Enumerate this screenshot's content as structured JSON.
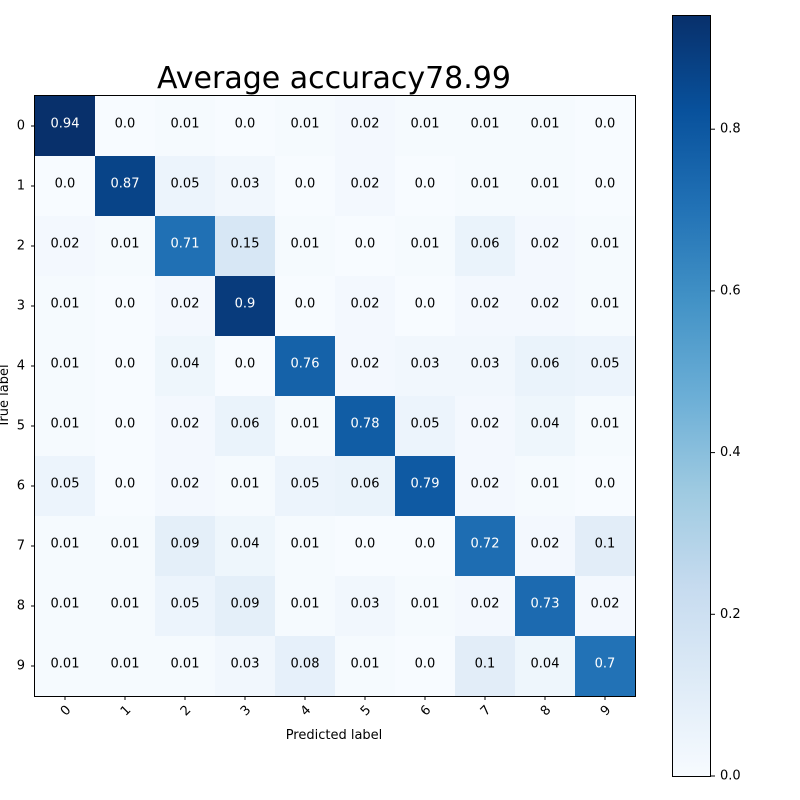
{
  "chart_data": {
    "type": "heatmap",
    "title": "Average accuracy78.99",
    "xlabel": "Predicted label",
    "ylabel": "True label",
    "x_categories": [
      "0",
      "1",
      "2",
      "3",
      "4",
      "5",
      "6",
      "7",
      "8",
      "9"
    ],
    "y_categories": [
      "0",
      "1",
      "2",
      "3",
      "4",
      "5",
      "6",
      "7",
      "8",
      "9"
    ],
    "values": [
      [
        "0.94",
        "0.0",
        "0.01",
        "0.0",
        "0.01",
        "0.02",
        "0.01",
        "0.01",
        "0.01",
        "0.0"
      ],
      [
        "0.0",
        "0.87",
        "0.05",
        "0.03",
        "0.0",
        "0.02",
        "0.0",
        "0.01",
        "0.01",
        "0.0"
      ],
      [
        "0.02",
        "0.01",
        "0.71",
        "0.15",
        "0.01",
        "0.0",
        "0.01",
        "0.06",
        "0.02",
        "0.01"
      ],
      [
        "0.01",
        "0.0",
        "0.02",
        "0.9",
        "0.0",
        "0.02",
        "0.0",
        "0.02",
        "0.02",
        "0.01"
      ],
      [
        "0.01",
        "0.0",
        "0.04",
        "0.0",
        "0.76",
        "0.02",
        "0.03",
        "0.03",
        "0.06",
        "0.05"
      ],
      [
        "0.01",
        "0.0",
        "0.02",
        "0.06",
        "0.01",
        "0.78",
        "0.05",
        "0.02",
        "0.04",
        "0.01"
      ],
      [
        "0.05",
        "0.0",
        "0.02",
        "0.01",
        "0.05",
        "0.06",
        "0.79",
        "0.02",
        "0.01",
        "0.0"
      ],
      [
        "0.01",
        "0.01",
        "0.09",
        "0.04",
        "0.01",
        "0.0",
        "0.0",
        "0.72",
        "0.02",
        "0.1"
      ],
      [
        "0.01",
        "0.01",
        "0.05",
        "0.09",
        "0.01",
        "0.03",
        "0.01",
        "0.02",
        "0.73",
        "0.02"
      ],
      [
        "0.01",
        "0.01",
        "0.01",
        "0.03",
        "0.08",
        "0.01",
        "0.0",
        "0.1",
        "0.04",
        "0.7"
      ]
    ],
    "colorbar": {
      "colormap": "Blues",
      "range": [
        0.0,
        0.94
      ],
      "ticks": [
        "0.0",
        "0.2",
        "0.4",
        "0.6",
        "0.8"
      ]
    },
    "text_colors": {
      "light": "#ffffff",
      "dark": "#000000"
    },
    "grid": false,
    "x_tick_rotation": "45deg"
  }
}
